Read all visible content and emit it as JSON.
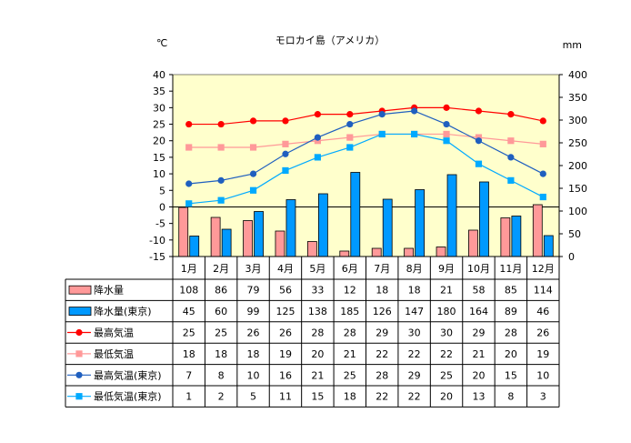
{
  "chart_data": {
    "type": "bar+line+table",
    "title": "モロカイ島（アメリカ）",
    "left_axis_unit": "℃",
    "right_axis_unit": "mm",
    "left_ylim": [
      -15,
      40
    ],
    "left_ticks": [
      "40",
      "35",
      "30",
      "25",
      "20",
      "15",
      "10",
      "5",
      "0",
      "-5",
      "-10",
      "-15"
    ],
    "right_ylim": [
      0,
      400
    ],
    "right_ticks": [
      "400",
      "350",
      "300",
      "250",
      "200",
      "150",
      "100",
      "50",
      "0"
    ],
    "categories": [
      "1月",
      "2月",
      "3月",
      "4月",
      "5月",
      "6月",
      "7月",
      "8月",
      "9月",
      "10月",
      "11月",
      "12月"
    ],
    "series": [
      {
        "name": "降水量",
        "kind": "bar",
        "axis": "right",
        "color": "#FF9999",
        "values": [
          108,
          86,
          79,
          56,
          33,
          12,
          18,
          18,
          21,
          58,
          85,
          114
        ]
      },
      {
        "name": "降水量(東京)",
        "kind": "bar",
        "axis": "right",
        "color": "#0099FF",
        "values": [
          45,
          60,
          99,
          125,
          138,
          185,
          126,
          147,
          180,
          164,
          89,
          46
        ]
      },
      {
        "name": "最高気温",
        "kind": "line",
        "marker": "circle",
        "axis": "left",
        "color": "#FF0000",
        "values": [
          25,
          25,
          26,
          26,
          28,
          28,
          29,
          30,
          30,
          29,
          28,
          26
        ]
      },
      {
        "name": "最低気温",
        "kind": "line",
        "marker": "square",
        "axis": "left",
        "color": "#FF9999",
        "values": [
          18,
          18,
          18,
          19,
          20,
          21,
          22,
          22,
          22,
          21,
          20,
          19
        ]
      },
      {
        "name": "最高気温(東京)",
        "kind": "line",
        "marker": "circle",
        "axis": "left",
        "color": "#1F5FBF",
        "values": [
          7,
          8,
          10,
          16,
          21,
          25,
          28,
          29,
          25,
          20,
          15,
          10
        ]
      },
      {
        "name": "最低気温(東京)",
        "kind": "line",
        "marker": "square",
        "axis": "left",
        "color": "#00AAFF",
        "values": [
          1,
          2,
          5,
          11,
          15,
          18,
          22,
          22,
          20,
          13,
          8,
          3
        ]
      }
    ],
    "plot_background": "#FFFFCC",
    "grid": false
  }
}
